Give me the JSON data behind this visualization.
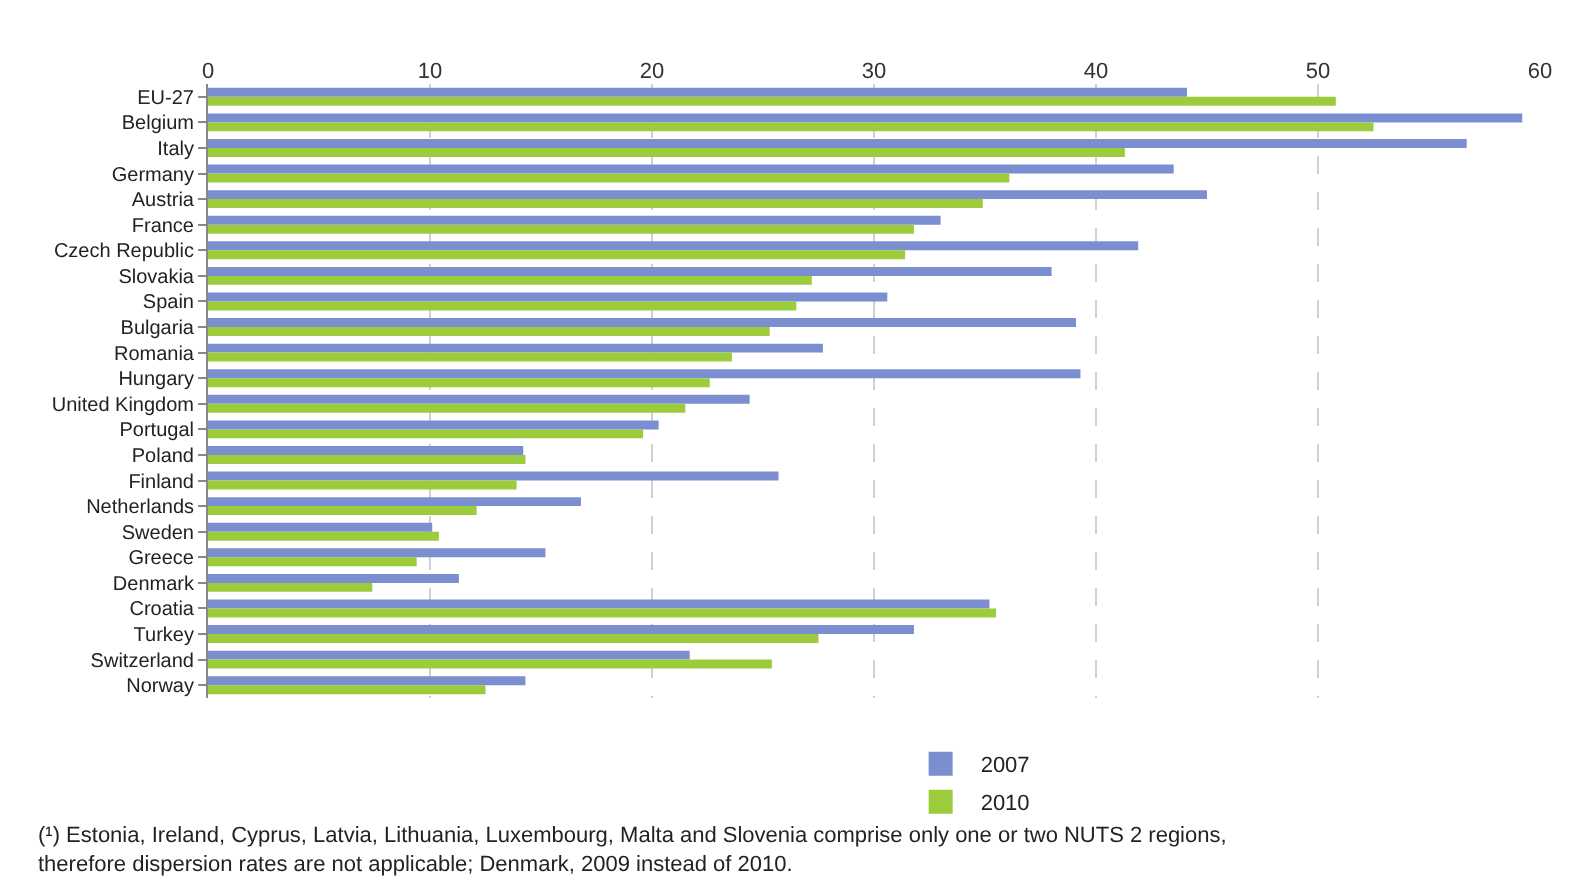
{
  "chart_data": {
    "type": "bar",
    "orientation": "horizontal",
    "categories": [
      "EU-27",
      "Belgium",
      "Italy",
      "Germany",
      "Austria",
      "France",
      "Czech Republic",
      "Slovakia",
      "Spain",
      "Bulgaria",
      "Romania",
      "Hungary",
      "United Kingdom",
      "Portugal",
      "Poland",
      "Finland",
      "Netherlands",
      "Sweden",
      "Greece",
      "Denmark",
      "Croatia",
      "Turkey",
      "Switzerland",
      "Norway"
    ],
    "series": [
      {
        "name": "2007",
        "color": "#7b8fd0",
        "values": [
          44.1,
          59.2,
          56.7,
          43.5,
          45.0,
          33.0,
          41.9,
          38.0,
          30.6,
          39.1,
          27.7,
          39.3,
          24.4,
          20.3,
          14.2,
          25.7,
          16.8,
          10.1,
          15.2,
          11.3,
          35.2,
          31.8,
          21.7,
          14.3
        ]
      },
      {
        "name": "2010",
        "color": "#9ccc3c",
        "values": [
          50.8,
          52.5,
          41.3,
          36.1,
          34.9,
          31.8,
          31.4,
          27.2,
          26.5,
          25.3,
          23.6,
          22.6,
          21.5,
          19.6,
          14.3,
          13.9,
          12.1,
          10.4,
          9.4,
          7.4,
          35.5,
          27.5,
          25.4,
          12.5
        ]
      }
    ],
    "xlim": [
      0,
      60
    ],
    "xticks": [
      0,
      10,
      20,
      30,
      40,
      50,
      60
    ],
    "grid": "x",
    "legend": "bottom",
    "annotations": [
      "(¹) Estonia, Ireland, Cyprus, Latvia, Lithuania, Luxembourg, Malta and Slovenia comprise only one or two NUTS 2 regions,\ntherefore dispersion rates are not applicable; Denmark, 2009 instead of 2010."
    ]
  }
}
